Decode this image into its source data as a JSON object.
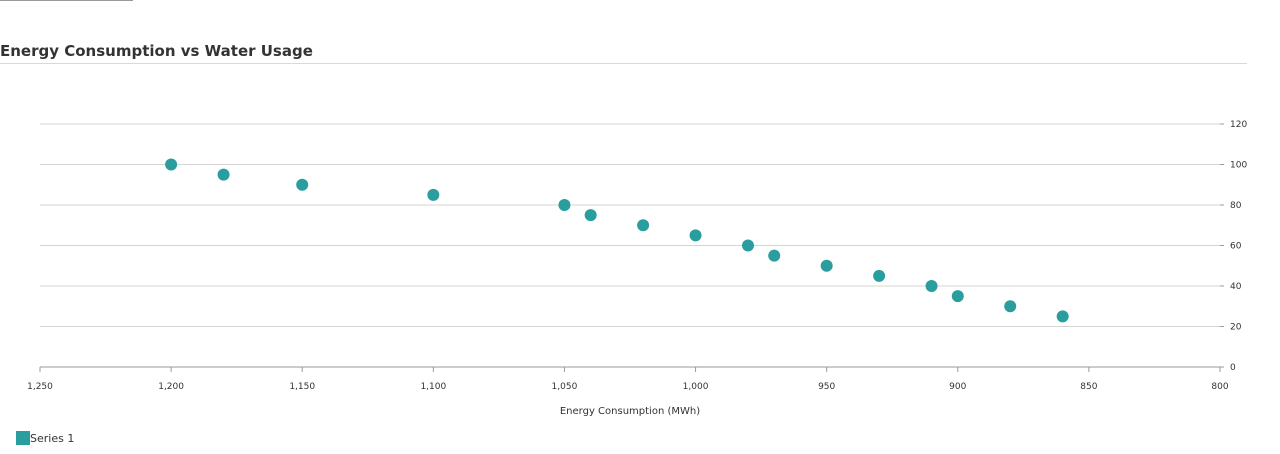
{
  "chart_data": {
    "type": "scatter",
    "title": "Energy Consumption vs Water Usage",
    "xlabel": "Energy Consumption (MWh)",
    "ylabel": "",
    "xlim": [
      1250,
      800
    ],
    "x_reversed": true,
    "ylim": [
      0,
      120
    ],
    "y_axis_position": "right",
    "grid": true,
    "legend_position": "bottom-left",
    "x_ticks": [
      1250,
      1200,
      1150,
      1100,
      1050,
      1000,
      950,
      900,
      850,
      800
    ],
    "x_tick_labels": [
      "1,250",
      "1,200",
      "1,150",
      "1,100",
      "1,050",
      "1,000",
      "950",
      "900",
      "850",
      "800"
    ],
    "y_ticks": [
      0,
      20,
      40,
      60,
      80,
      100,
      120
    ],
    "y_tick_labels": [
      "0",
      "20",
      "40",
      "60",
      "80",
      "100",
      "120"
    ],
    "series": [
      {
        "name": "Series 1",
        "color": "#2a9d9f",
        "points": [
          {
            "x": 1200,
            "y": 100
          },
          {
            "x": 1180,
            "y": 95
          },
          {
            "x": 1150,
            "y": 90
          },
          {
            "x": 1100,
            "y": 85
          },
          {
            "x": 1050,
            "y": 80
          },
          {
            "x": 1040,
            "y": 75
          },
          {
            "x": 1020,
            "y": 70
          },
          {
            "x": 1000,
            "y": 65
          },
          {
            "x": 980,
            "y": 60
          },
          {
            "x": 970,
            "y": 55
          },
          {
            "x": 950,
            "y": 50
          },
          {
            "x": 930,
            "y": 45
          },
          {
            "x": 910,
            "y": 40
          },
          {
            "x": 900,
            "y": 35
          },
          {
            "x": 880,
            "y": 30
          },
          {
            "x": 860,
            "y": 25
          }
        ]
      }
    ]
  }
}
